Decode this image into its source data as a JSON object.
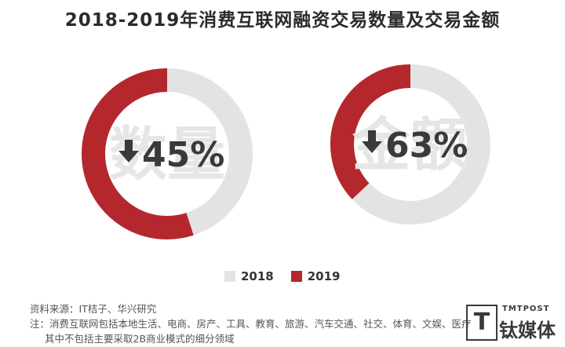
{
  "title": "2018-2019年消费互联网融资交易数量及交易金额",
  "chart_data": [
    {
      "type": "pie",
      "name": "数量",
      "center_label": "数量",
      "change_label": "45%",
      "change_direction": "down",
      "series": [
        {
          "name": "2018",
          "value": 100
        },
        {
          "name": "2019",
          "value": 55
        }
      ]
    },
    {
      "type": "pie",
      "name": "金额",
      "center_label": "金额",
      "change_label": "63%",
      "change_direction": "down",
      "series": [
        {
          "name": "2018",
          "value": 100
        },
        {
          "name": "2019",
          "value": 37
        }
      ]
    }
  ],
  "legend": [
    {
      "label": "2018",
      "color": "#e3e3e3"
    },
    {
      "label": "2019",
      "color": "#b4282d"
    }
  ],
  "colors": {
    "base": "#e3e3e3",
    "accent": "#b4282d",
    "text": "#3a3a3a"
  },
  "footer": {
    "source": "资料来源：IT桔子、华兴研究",
    "note": "注：消费互联网包括本地生活、电商、房产、工具、教育、旅游、汽车交通、社交、体育、文娱、医疗",
    "note2": "其中不包括主要采取2B商业模式的细分领域"
  },
  "logo": {
    "top": "TMTPOST",
    "name": "钛媒体",
    "mark": "T"
  }
}
